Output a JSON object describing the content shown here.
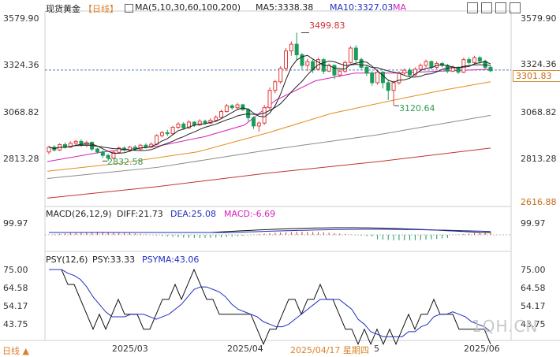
{
  "header": {
    "instrument": "现货黄金",
    "period_bracket": "【日线】",
    "ma_params": "MA(5,10,30,60,100,200)",
    "ma5": "MA5:3338.38",
    "ma10": "MA10:3327.03",
    "ma_more": "MA"
  },
  "price_axis": {
    "left_labels": [
      "3579.90",
      "3324.36",
      "3068.82",
      "2813.28"
    ],
    "right_labels": [
      "3579.90",
      "3324.36",
      "3068.82",
      "2813.28",
      "2616.88"
    ],
    "current_price": "3301.83"
  },
  "annotations": {
    "high": "3499.83",
    "low_mid": "3120.64",
    "low_left": "2832.58"
  },
  "macd": {
    "title": "MACD(26,12,9)",
    "diff": "DIFF:21.73",
    "dea": "DEA:25.08",
    "macd": "MACD:-6.69",
    "axis_label": "99.97"
  },
  "psy": {
    "title": "PSY(12,6)",
    "psy": "PSY:33.33",
    "psyma": "PSYMA:43.06",
    "axis_labels": [
      "75.00",
      "64.58",
      "54.17",
      "43.75"
    ]
  },
  "x_axis": {
    "labels": [
      "2025/03",
      "2025/04",
      "2025/04/17 星期四",
      "5",
      "2025/06"
    ]
  },
  "footer": {
    "period_switch": "日线 ▲",
    "watermark": "1QH.CN"
  },
  "colors": {
    "up": "#e23b3b",
    "down": "#1a9c5b",
    "ma5": "#222222",
    "ma10": "#222222",
    "ma30": "#d61fb8",
    "ma60": "#e38b1a",
    "ma100": "#8a8a8a",
    "ma200": "#c0342c",
    "psyma": "#1f2fbf"
  },
  "chart_data": {
    "type": "candlestick",
    "price_range": [
      2616.88,
      3579.9
    ],
    "candles": [
      [
        2880,
        2905,
        2868,
        2912
      ],
      [
        2905,
        2890,
        2882,
        2915
      ],
      [
        2890,
        2918,
        2885,
        2925
      ],
      [
        2918,
        2905,
        2898,
        2930
      ],
      [
        2905,
        2925,
        2900,
        2935
      ],
      [
        2925,
        2935,
        2915,
        2942
      ],
      [
        2935,
        2915,
        2908,
        2945
      ],
      [
        2915,
        2930,
        2905,
        2938
      ],
      [
        2930,
        2895,
        2885,
        2935
      ],
      [
        2895,
        2880,
        2870,
        2902
      ],
      [
        2880,
        2862,
        2848,
        2888
      ],
      [
        2862,
        2848,
        2833,
        2870
      ],
      [
        2848,
        2878,
        2842,
        2885
      ],
      [
        2878,
        2900,
        2870,
        2908
      ],
      [
        2900,
        2890,
        2882,
        2910
      ],
      [
        2890,
        2905,
        2880,
        2912
      ],
      [
        2905,
        2895,
        2885,
        2915
      ],
      [
        2895,
        2915,
        2888,
        2922
      ],
      [
        2915,
        2905,
        2898,
        2925
      ],
      [
        2905,
        2920,
        2900,
        2930
      ],
      [
        2920,
        2965,
        2915,
        2972
      ],
      [
        2965,
        2980,
        2955,
        2990
      ],
      [
        2980,
        2975,
        2962,
        2995
      ],
      [
        2975,
        3008,
        2970,
        3015
      ],
      [
        3008,
        3025,
        3000,
        3035
      ],
      [
        3025,
        3005,
        2995,
        3035
      ],
      [
        3005,
        3035,
        3000,
        3045
      ],
      [
        3035,
        3020,
        3010,
        3040
      ],
      [
        3020,
        3040,
        3015,
        3050
      ],
      [
        3040,
        3030,
        3022,
        3048
      ],
      [
        3030,
        3045,
        3025,
        3055
      ],
      [
        3045,
        3060,
        3040,
        3070
      ],
      [
        3060,
        3090,
        3055,
        3100
      ],
      [
        3090,
        3120,
        3085,
        3130
      ],
      [
        3120,
        3110,
        3100,
        3128
      ],
      [
        3110,
        3125,
        3102,
        3135
      ],
      [
        3125,
        3100,
        3095,
        3130
      ],
      [
        3100,
        3058,
        3040,
        3108
      ],
      [
        3058,
        3015,
        3000,
        3065
      ],
      [
        3015,
        3030,
        2985,
        3040
      ],
      [
        3030,
        3110,
        3020,
        3125
      ],
      [
        3110,
        3200,
        3100,
        3215
      ],
      [
        3200,
        3245,
        3185,
        3255
      ],
      [
        3245,
        3315,
        3235,
        3325
      ],
      [
        3315,
        3405,
        3300,
        3420
      ],
      [
        3405,
        3440,
        3380,
        3455
      ],
      [
        3440,
        3385,
        3360,
        3500
      ],
      [
        3385,
        3330,
        3310,
        3395
      ],
      [
        3330,
        3350,
        3300,
        3365
      ],
      [
        3350,
        3310,
        3290,
        3360
      ],
      [
        3310,
        3360,
        3305,
        3370
      ],
      [
        3360,
        3300,
        3285,
        3368
      ],
      [
        3300,
        3330,
        3295,
        3340
      ],
      [
        3330,
        3280,
        3260,
        3335
      ],
      [
        3280,
        3300,
        3270,
        3310
      ],
      [
        3300,
        3345,
        3290,
        3355
      ],
      [
        3345,
        3420,
        3340,
        3430
      ],
      [
        3420,
        3360,
        3340,
        3435
      ],
      [
        3360,
        3320,
        3310,
        3370
      ],
      [
        3320,
        3290,
        3275,
        3330
      ],
      [
        3290,
        3240,
        3225,
        3300
      ],
      [
        3240,
        3295,
        3230,
        3305
      ],
      [
        3295,
        3240,
        3210,
        3300
      ],
      [
        3240,
        3200,
        3150,
        3250
      ],
      [
        3200,
        3240,
        3120,
        3250
      ],
      [
        3240,
        3290,
        3230,
        3300
      ],
      [
        3290,
        3305,
        3280,
        3315
      ],
      [
        3305,
        3280,
        3270,
        3318
      ],
      [
        3280,
        3310,
        3275,
        3320
      ],
      [
        3310,
        3330,
        3300,
        3340
      ],
      [
        3330,
        3350,
        3320,
        3360
      ],
      [
        3350,
        3320,
        3310,
        3355
      ],
      [
        3320,
        3340,
        3310,
        3350
      ],
      [
        3340,
        3330,
        3320,
        3348
      ],
      [
        3330,
        3300,
        3290,
        3338
      ],
      [
        3300,
        3320,
        3295,
        3330
      ],
      [
        3320,
        3295,
        3285,
        3325
      ],
      [
        3295,
        3360,
        3290,
        3370
      ],
      [
        3360,
        3345,
        3335,
        3372
      ],
      [
        3345,
        3370,
        3340,
        3380
      ],
      [
        3370,
        3352,
        3340,
        3378
      ],
      [
        3352,
        3320,
        3310,
        3360
      ],
      [
        3320,
        3302,
        3295,
        3330
      ]
    ]
  }
}
